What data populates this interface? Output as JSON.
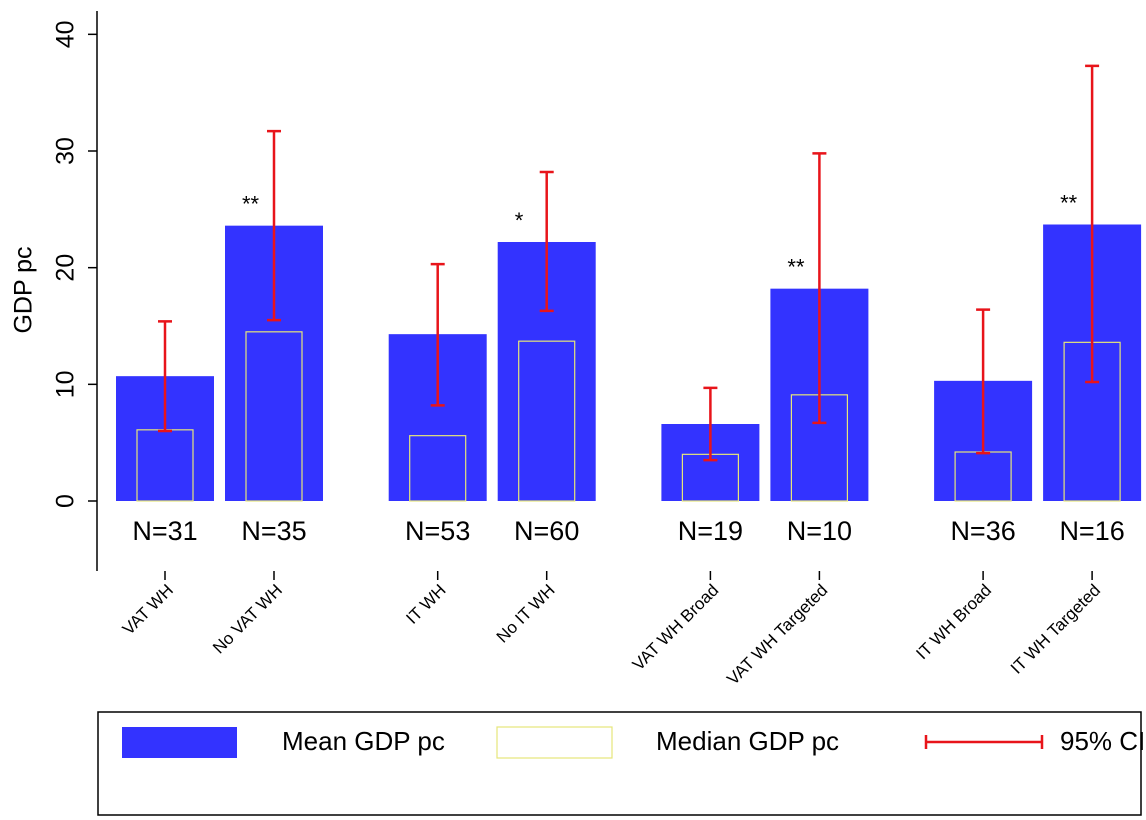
{
  "chart_data": {
    "type": "bar",
    "y_label": "GDP pc",
    "categories": [
      "VAT WH",
      "No VAT WH",
      "IT WH",
      "No IT WH",
      "VAT WH Broad",
      "VAT WH Targeted",
      "IT WH Broad",
      "IT WH Targeted"
    ],
    "series": [
      {
        "name": "Mean GDP pc",
        "color": "#3333ff",
        "values": [
          10.7,
          23.6,
          14.3,
          22.2,
          6.6,
          18.2,
          10.3,
          23.7
        ]
      },
      {
        "name": "Median GDP pc",
        "color": "#e6e67a",
        "values": [
          6.1,
          14.5,
          5.6,
          13.7,
          4.0,
          9.1,
          4.2,
          13.6
        ]
      }
    ],
    "ci": {
      "name": "95% CI",
      "color": "#e8141a",
      "low": [
        6.0,
        15.5,
        8.2,
        16.3,
        3.5,
        6.7,
        4.1,
        10.2
      ],
      "high": [
        15.4,
        31.7,
        20.3,
        28.2,
        9.7,
        29.8,
        16.4,
        37.3
      ]
    },
    "significance": [
      null,
      "**",
      null,
      "*",
      null,
      "**",
      null,
      "**"
    ],
    "n_labels": [
      "N=31",
      "N=35",
      "N=53",
      "N=60",
      "N=19",
      "N=10",
      "N=36",
      "N=16"
    ],
    "ylim": [
      -6,
      42
    ],
    "yticks": [
      0,
      10,
      20,
      30,
      40
    ]
  }
}
